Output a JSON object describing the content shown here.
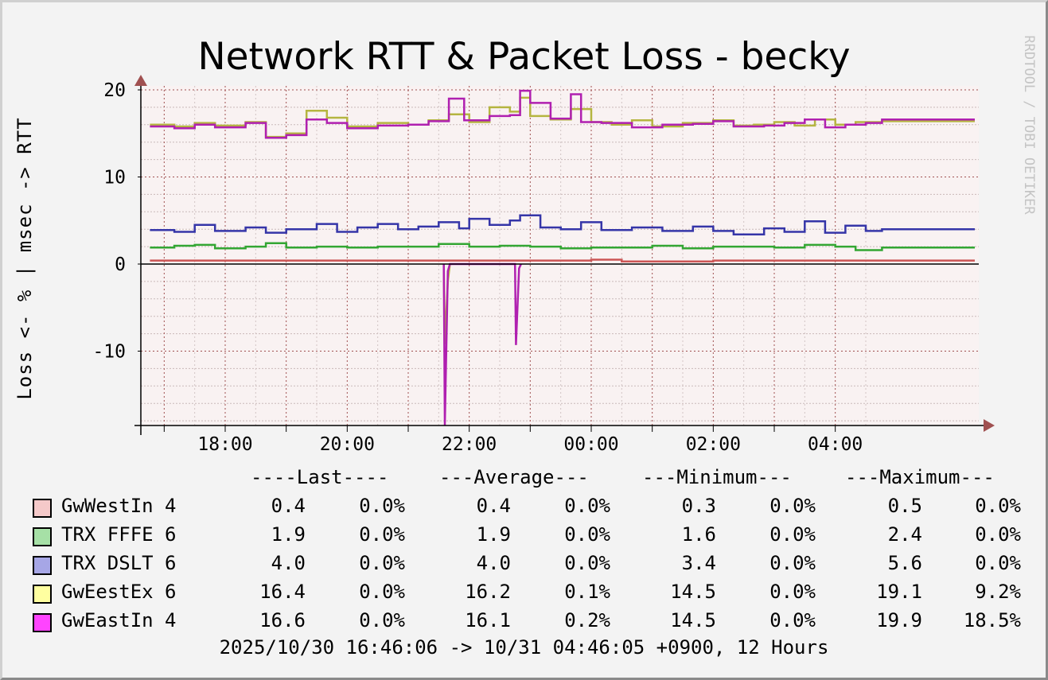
{
  "chart_data": {
    "type": "line",
    "title": "Network RTT & Packet Loss - becky",
    "ylabel": "Loss <- % | msec -> RTT",
    "watermark": "RRDTOOL / TOBI OETIKER",
    "ylim": [
      -18.5,
      20.8
    ],
    "yticks": [
      20,
      10,
      0,
      -10
    ],
    "ytick_labels": [
      "20",
      "10",
      "0",
      "-10"
    ],
    "x_range": [
      "2025-10-30 16:46",
      "2025-10-31 04:46"
    ],
    "xticks": [
      "18:00",
      "20:00",
      "22:00",
      "00:00",
      "02:00",
      "04:00"
    ],
    "grid": true,
    "series": [
      {
        "name": "GwWestIn 4",
        "color": "#cc5555",
        "swatch": "#f5c9c9",
        "points": [
          [
            "16:46",
            0.4
          ],
          [
            "18:00",
            0.4
          ],
          [
            "20:00",
            0.4
          ],
          [
            "22:00",
            0.4
          ],
          [
            "00:00",
            0.5
          ],
          [
            "00:30",
            0.3
          ],
          [
            "02:00",
            0.4
          ],
          [
            "04:46",
            0.4
          ]
        ],
        "loss": []
      },
      {
        "name": "TRX FFFE 6",
        "color": "#33a633",
        "swatch": "#a6e0a6",
        "points": [
          [
            "16:46",
            1.9
          ],
          [
            "17:10",
            2.1
          ],
          [
            "17:30",
            2.2
          ],
          [
            "17:50",
            1.8
          ],
          [
            "18:20",
            2.0
          ],
          [
            "18:40",
            2.4
          ],
          [
            "19:00",
            1.9
          ],
          [
            "19:30",
            2.0
          ],
          [
            "20:00",
            1.9
          ],
          [
            "20:30",
            2.0
          ],
          [
            "21:00",
            2.0
          ],
          [
            "21:30",
            2.3
          ],
          [
            "22:00",
            2.0
          ],
          [
            "22:30",
            2.1
          ],
          [
            "23:00",
            2.0
          ],
          [
            "23:30",
            1.8
          ],
          [
            "00:00",
            1.9
          ],
          [
            "00:30",
            1.9
          ],
          [
            "01:00",
            2.1
          ],
          [
            "01:30",
            1.8
          ],
          [
            "02:00",
            2.0
          ],
          [
            "02:30",
            2.0
          ],
          [
            "03:00",
            1.9
          ],
          [
            "03:30",
            2.2
          ],
          [
            "04:00",
            2.0
          ],
          [
            "04:20",
            1.6
          ],
          [
            "04:46",
            1.9
          ]
        ],
        "loss": []
      },
      {
        "name": "TRX DSLT 6",
        "color": "#3535a8",
        "swatch": "#a6a6e6",
        "points": [
          [
            "16:46",
            3.9
          ],
          [
            "17:10",
            3.7
          ],
          [
            "17:30",
            4.5
          ],
          [
            "17:50",
            3.8
          ],
          [
            "18:20",
            4.2
          ],
          [
            "18:40",
            3.6
          ],
          [
            "19:00",
            4.0
          ],
          [
            "19:30",
            4.6
          ],
          [
            "19:50",
            3.7
          ],
          [
            "20:10",
            4.2
          ],
          [
            "20:30",
            4.6
          ],
          [
            "20:50",
            4.0
          ],
          [
            "21:10",
            4.3
          ],
          [
            "21:30",
            4.8
          ],
          [
            "21:50",
            4.1
          ],
          [
            "22:00",
            5.2
          ],
          [
            "22:20",
            4.5
          ],
          [
            "22:40",
            5.0
          ],
          [
            "22:50",
            5.6
          ],
          [
            "23:10",
            4.2
          ],
          [
            "23:30",
            4.0
          ],
          [
            "23:50",
            4.8
          ],
          [
            "00:10",
            3.9
          ],
          [
            "00:40",
            4.2
          ],
          [
            "01:10",
            3.8
          ],
          [
            "01:40",
            4.3
          ],
          [
            "02:00",
            3.8
          ],
          [
            "02:20",
            3.4
          ],
          [
            "02:50",
            4.1
          ],
          [
            "03:10",
            3.7
          ],
          [
            "03:30",
            4.9
          ],
          [
            "03:50",
            3.6
          ],
          [
            "04:10",
            4.4
          ],
          [
            "04:30",
            3.8
          ],
          [
            "04:46",
            4.0
          ]
        ],
        "loss": []
      },
      {
        "name": "GwEestEx 6",
        "color": "#b5b540",
        "swatch": "#ffffa0",
        "points": [
          [
            "16:46",
            16.0
          ],
          [
            "17:10",
            15.8
          ],
          [
            "17:30",
            16.2
          ],
          [
            "17:50",
            15.9
          ],
          [
            "18:20",
            16.3
          ],
          [
            "18:40",
            14.6
          ],
          [
            "19:00",
            15.0
          ],
          [
            "19:20",
            17.6
          ],
          [
            "19:40",
            16.8
          ],
          [
            "20:00",
            15.8
          ],
          [
            "20:30",
            16.2
          ],
          [
            "21:00",
            16.0
          ],
          [
            "21:20",
            16.5
          ],
          [
            "21:40",
            17.2
          ],
          [
            "22:00",
            16.3
          ],
          [
            "22:20",
            18.0
          ],
          [
            "22:40",
            17.5
          ],
          [
            "22:50",
            19.1
          ],
          [
            "23:00",
            17.0
          ],
          [
            "23:20",
            16.6
          ],
          [
            "23:40",
            17.8
          ],
          [
            "00:00",
            16.3
          ],
          [
            "00:20",
            16.0
          ],
          [
            "00:40",
            16.5
          ],
          [
            "01:00",
            15.8
          ],
          [
            "01:30",
            16.2
          ],
          [
            "02:00",
            16.5
          ],
          [
            "02:20",
            15.9
          ],
          [
            "02:40",
            16.0
          ],
          [
            "03:00",
            16.3
          ],
          [
            "03:20",
            15.9
          ],
          [
            "03:40",
            16.6
          ],
          [
            "04:00",
            16.0
          ],
          [
            "04:20",
            16.3
          ],
          [
            "04:46",
            16.4
          ]
        ],
        "loss": [
          [
            "21:35",
            0
          ],
          [
            "21:36",
            9.2
          ],
          [
            "21:39",
            2.0
          ],
          [
            "21:41",
            0
          ]
        ]
      },
      {
        "name": "GwEastIn 4",
        "color": "#b020b0",
        "swatch": "#ff44ff",
        "points": [
          [
            "16:46",
            15.8
          ],
          [
            "17:10",
            15.6
          ],
          [
            "17:30",
            16.0
          ],
          [
            "17:50",
            15.7
          ],
          [
            "18:20",
            16.2
          ],
          [
            "18:40",
            14.5
          ],
          [
            "19:00",
            14.8
          ],
          [
            "19:20",
            16.6
          ],
          [
            "19:40",
            16.2
          ],
          [
            "20:00",
            15.6
          ],
          [
            "20:30",
            15.9
          ],
          [
            "21:00",
            16.0
          ],
          [
            "21:20",
            16.4
          ],
          [
            "21:40",
            19.0
          ],
          [
            "21:55",
            16.5
          ],
          [
            "22:20",
            17.0
          ],
          [
            "22:40",
            17.1
          ],
          [
            "22:50",
            19.9
          ],
          [
            "23:00",
            18.5
          ],
          [
            "23:20",
            16.7
          ],
          [
            "23:40",
            19.5
          ],
          [
            "23:50",
            16.3
          ],
          [
            "00:10",
            16.2
          ],
          [
            "00:40",
            15.7
          ],
          [
            "01:10",
            16.0
          ],
          [
            "01:40",
            16.1
          ],
          [
            "02:00",
            16.4
          ],
          [
            "02:20",
            15.8
          ],
          [
            "02:50",
            15.9
          ],
          [
            "03:10",
            16.2
          ],
          [
            "03:30",
            16.6
          ],
          [
            "03:50",
            15.7
          ],
          [
            "04:10",
            16.0
          ],
          [
            "04:30",
            16.2
          ],
          [
            "04:46",
            16.6
          ]
        ],
        "loss": [
          [
            "21:35",
            0
          ],
          [
            "21:36",
            18.5
          ],
          [
            "21:39",
            0.8
          ],
          [
            "21:41",
            0
          ],
          [
            "22:45",
            0
          ],
          [
            "22:46",
            9.3
          ],
          [
            "22:49",
            0.5
          ],
          [
            "22:51",
            0
          ]
        ]
      }
    ]
  },
  "legend": {
    "headers": [
      "----Last----",
      "---Average---",
      "---Minimum---",
      "---Maximum---"
    ],
    "rows": [
      {
        "name": "GwWestIn 4",
        "last": "0.4",
        "last_loss": "0.0%",
        "avg": "0.4",
        "avg_loss": "0.0%",
        "min": "0.3",
        "min_loss": "0.0%",
        "max": "0.5",
        "max_loss": "0.0%"
      },
      {
        "name": "TRX FFFE 6",
        "last": "1.9",
        "last_loss": "0.0%",
        "avg": "1.9",
        "avg_loss": "0.0%",
        "min": "1.6",
        "min_loss": "0.0%",
        "max": "2.4",
        "max_loss": "0.0%"
      },
      {
        "name": "TRX DSLT 6",
        "last": "4.0",
        "last_loss": "0.0%",
        "avg": "4.0",
        "avg_loss": "0.0%",
        "min": "3.4",
        "min_loss": "0.0%",
        "max": "5.6",
        "max_loss": "0.0%"
      },
      {
        "name": "GwEestEx 6",
        "last": "16.4",
        "last_loss": "0.0%",
        "avg": "16.2",
        "avg_loss": "0.1%",
        "min": "14.5",
        "min_loss": "0.0%",
        "max": "19.1",
        "max_loss": "9.2%"
      },
      {
        "name": "GwEastIn 4",
        "last": "16.6",
        "last_loss": "0.0%",
        "avg": "16.1",
        "avg_loss": "0.2%",
        "min": "14.5",
        "min_loss": "0.0%",
        "max": "19.9",
        "max_loss": "18.5%"
      }
    ],
    "period": "2025/10/30 16:46:06 -> 10/31 04:46:05 +0900, 12 Hours"
  }
}
